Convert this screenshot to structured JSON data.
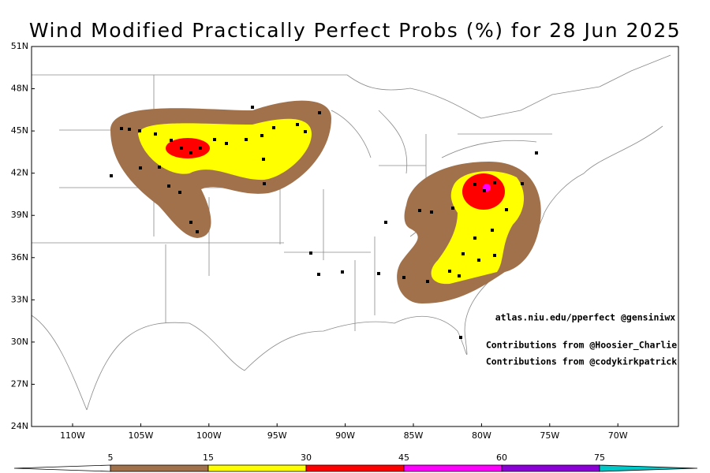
{
  "title": "Wind Modified Practically Perfect Probs (%) for 28 Jun 2025",
  "latitude_labels": [
    "51N",
    "48N",
    "45N",
    "42N",
    "39N",
    "36N",
    "33N",
    "30N",
    "27N",
    "24N"
  ],
  "longitude_labels": [
    "110W",
    "105W",
    "100W",
    "95W",
    "90W",
    "85W",
    "80W",
    "75W",
    "70W"
  ],
  "annotations": [
    "atlas.niu.edu/pperfect @gensiniwx",
    "Contributions from @Hoosier_Charlie",
    "Contributions from @codykirkpatrick"
  ],
  "legend": {
    "levels": [
      5,
      15,
      30,
      45,
      60,
      75
    ],
    "colors": [
      "#ffffff",
      "#a0714a",
      "#ffff00",
      "#ff0000",
      "#ff00ff",
      "#8b00d6",
      "#00c8c8"
    ]
  }
}
